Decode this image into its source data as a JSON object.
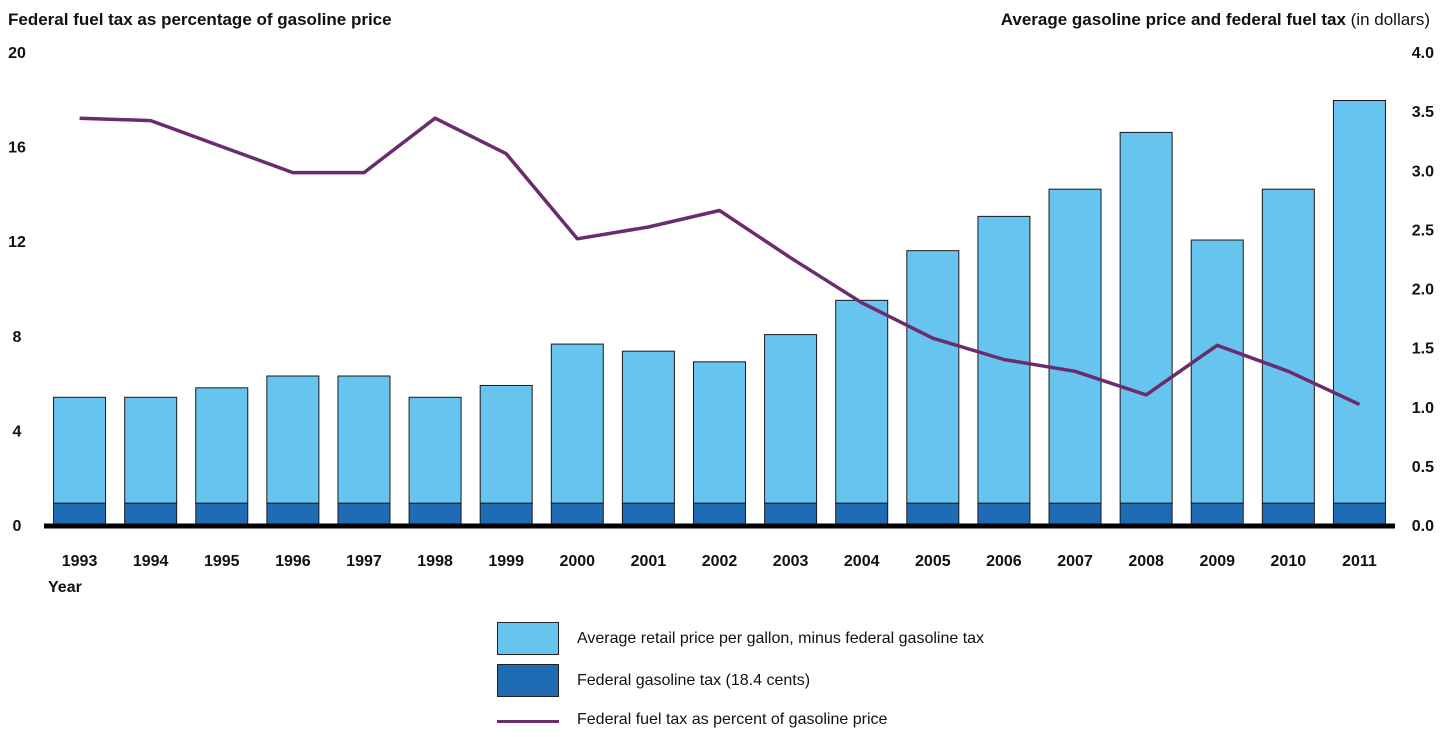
{
  "titles": {
    "left": "Federal fuel tax as percentage of gasoline price",
    "right_bold": "Average gasoline price and federal fuel tax",
    "right_normal": "(in dollars)"
  },
  "chart_data": {
    "type": "bar",
    "categories": [
      "1993",
      "1994",
      "1995",
      "1996",
      "1997",
      "1998",
      "1999",
      "2000",
      "2001",
      "2002",
      "2003",
      "2004",
      "2005",
      "2006",
      "2007",
      "2008",
      "2009",
      "2010",
      "2011"
    ],
    "xlabel": "Year",
    "series": [
      {
        "name": "Federal gasoline tax (18.4 cents)",
        "kind": "bar-stack-bottom",
        "axis": "right",
        "color": "#1f6cb5",
        "values": [
          0.184,
          0.184,
          0.184,
          0.184,
          0.184,
          0.184,
          0.184,
          0.184,
          0.184,
          0.184,
          0.184,
          0.184,
          0.184,
          0.184,
          0.184,
          0.184,
          0.184,
          0.184,
          0.184
        ]
      },
      {
        "name": "Average retail price per gallon, minus federal gasoline tax",
        "kind": "bar-stack-top",
        "axis": "right",
        "color": "#66c4ee",
        "values": [
          0.896,
          0.896,
          0.976,
          1.076,
          1.076,
          0.896,
          0.996,
          1.346,
          1.286,
          1.196,
          1.426,
          1.716,
          2.136,
          2.426,
          2.656,
          3.136,
          2.226,
          2.656,
          3.406
        ]
      },
      {
        "name": "Federal fuel tax as percent of gasoline price",
        "kind": "line",
        "axis": "left",
        "color": "#6a2c6e",
        "values": [
          17.2,
          17.1,
          16.0,
          14.9,
          14.9,
          17.2,
          15.7,
          12.1,
          12.6,
          13.3,
          11.3,
          9.4,
          7.9,
          7.0,
          6.5,
          5.5,
          7.6,
          6.5,
          5.1
        ]
      }
    ],
    "y_left": {
      "ylim": [
        0,
        20
      ],
      "ticks": [
        "0",
        "4",
        "8",
        "12",
        "16",
        "20"
      ]
    },
    "y_right": {
      "ylim": [
        0,
        4
      ],
      "ticks": [
        "0.0",
        "0.5",
        "1.0",
        "1.5",
        "2.0",
        "2.5",
        "3.0",
        "3.5",
        "4.0"
      ]
    },
    "grid": false,
    "legend_placement": "bottom"
  }
}
